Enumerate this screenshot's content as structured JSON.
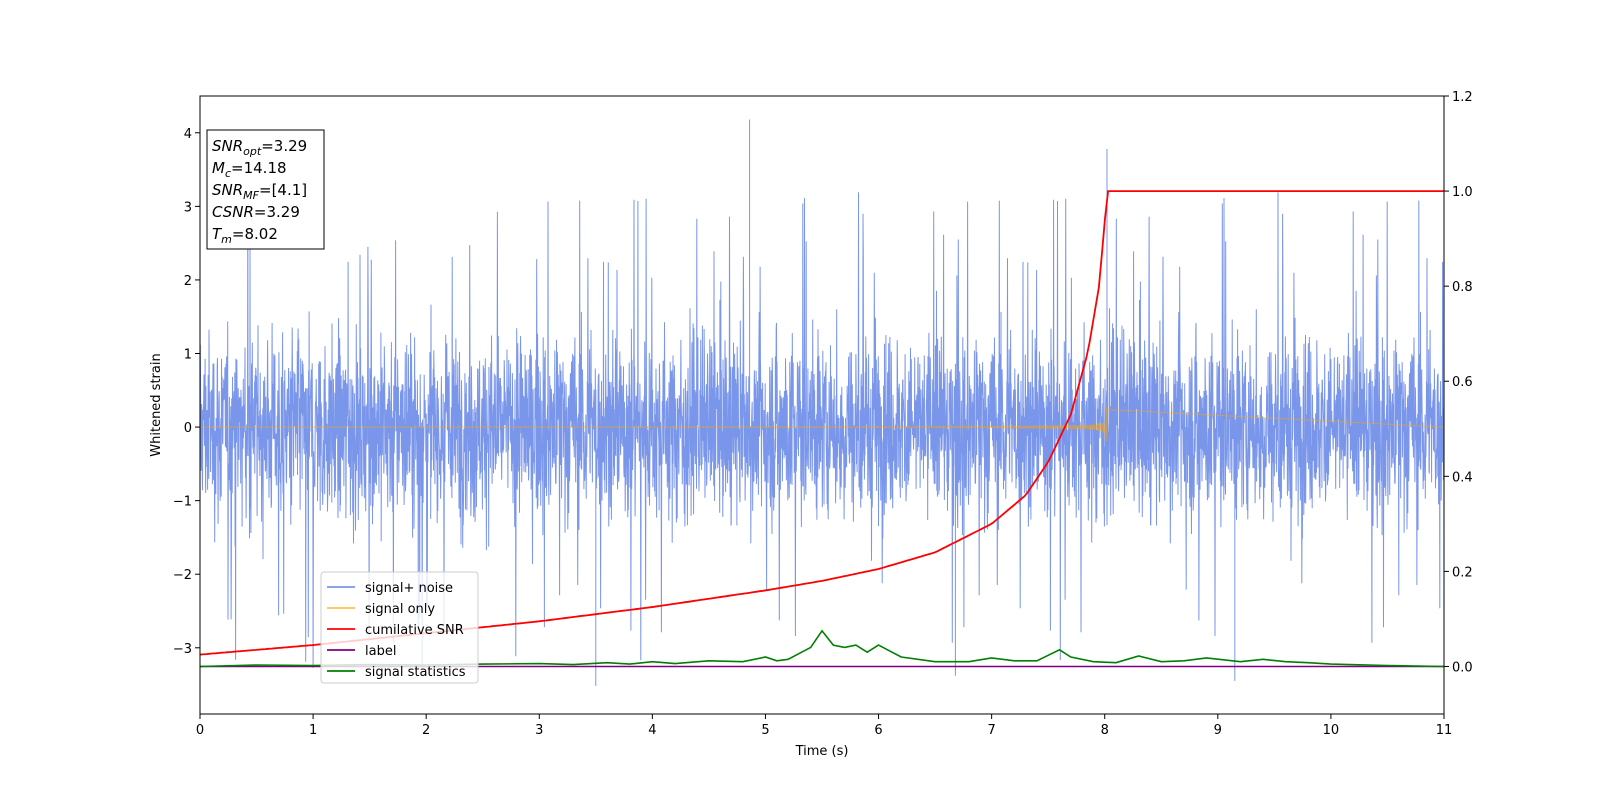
{
  "chart_data": {
    "type": "line",
    "xlabel": "Time (s)",
    "ylabel": "Whitened strain",
    "xlim": [
      0,
      11
    ],
    "ylim": [
      -3.9,
      4.5
    ],
    "y2lim": [
      -0.1,
      1.2
    ],
    "xticks": [
      0,
      1,
      2,
      3,
      4,
      5,
      6,
      7,
      8,
      9,
      10,
      11
    ],
    "yticks": [
      -3,
      -2,
      -1,
      0,
      1,
      2,
      3,
      4
    ],
    "y2ticks": [
      0.0,
      0.2,
      0.4,
      0.6,
      0.8,
      1.0,
      1.2
    ],
    "grid": false,
    "legend_position": "lower-left",
    "stats_box": [
      {
        "var": "SNR",
        "sub": "opt",
        "value": "=3.29"
      },
      {
        "var": "M",
        "sub": "c",
        "value": "=14.18"
      },
      {
        "var": "SNR",
        "sub": "MF",
        "value": "=[4.1]"
      },
      {
        "var": "CSNR",
        "sub": "",
        "value": "=3.29"
      },
      {
        "var": "T",
        "sub": "m",
        "value": "=8.02"
      }
    ],
    "series": [
      {
        "name": "signal+ noise",
        "color": "#4169e1",
        "axis": "left",
        "description_values": {
          "band_range": [
            -2.0,
            2.0
          ],
          "peak_spikes": [
            {
              "x": 4.86,
              "y": 4.18
            },
            {
              "x": 8.02,
              "y": 3.78
            },
            {
              "x": 3.5,
              "y": -3.52
            },
            {
              "x": 9.15,
              "y": -3.45
            },
            {
              "x": 6.68,
              "y": -3.38
            }
          ]
        }
      },
      {
        "name": "signal only",
        "color": "#ffa500",
        "axis": "left",
        "chirp_end_x": 8.02,
        "max_amplitude": 0.5
      },
      {
        "name": "cumilative SNR",
        "color": "#ff0000",
        "axis": "right",
        "x": [
          0,
          1,
          2,
          3,
          4,
          5,
          5.5,
          6,
          6.5,
          7,
          7.3,
          7.5,
          7.7,
          7.85,
          7.95,
          8.02,
          8.03,
          11
        ],
        "values": [
          0.025,
          0.045,
          0.07,
          0.095,
          0.125,
          0.16,
          0.18,
          0.205,
          0.24,
          0.3,
          0.36,
          0.43,
          0.53,
          0.66,
          0.8,
          0.99,
          1.0,
          1.0
        ]
      },
      {
        "name": "label",
        "color": "#800080",
        "axis": "right",
        "x": [
          0,
          11
        ],
        "values": [
          0.0,
          0.0
        ]
      },
      {
        "name": "signal statistics",
        "color": "#008000",
        "axis": "right",
        "x": [
          0,
          0.5,
          1,
          1.5,
          2,
          2.5,
          3,
          3.3,
          3.6,
          3.8,
          4.0,
          4.2,
          4.5,
          4.8,
          5.0,
          5.1,
          5.2,
          5.4,
          5.5,
          5.6,
          5.7,
          5.8,
          5.9,
          6.0,
          6.2,
          6.5,
          6.8,
          7.0,
          7.2,
          7.4,
          7.6,
          7.7,
          7.9,
          8.1,
          8.3,
          8.5,
          8.7,
          8.9,
          9.2,
          9.4,
          9.6,
          9.8,
          10.0,
          10.5,
          11
        ],
        "values": [
          0.0,
          0.003,
          0.002,
          0.004,
          0.003,
          0.005,
          0.006,
          0.004,
          0.008,
          0.005,
          0.01,
          0.006,
          0.012,
          0.01,
          0.02,
          0.012,
          0.015,
          0.04,
          0.075,
          0.045,
          0.04,
          0.045,
          0.03,
          0.045,
          0.02,
          0.01,
          0.01,
          0.018,
          0.012,
          0.012,
          0.035,
          0.02,
          0.01,
          0.008,
          0.022,
          0.01,
          0.012,
          0.018,
          0.01,
          0.015,
          0.01,
          0.008,
          0.005,
          0.002,
          0.0
        ]
      }
    ]
  }
}
